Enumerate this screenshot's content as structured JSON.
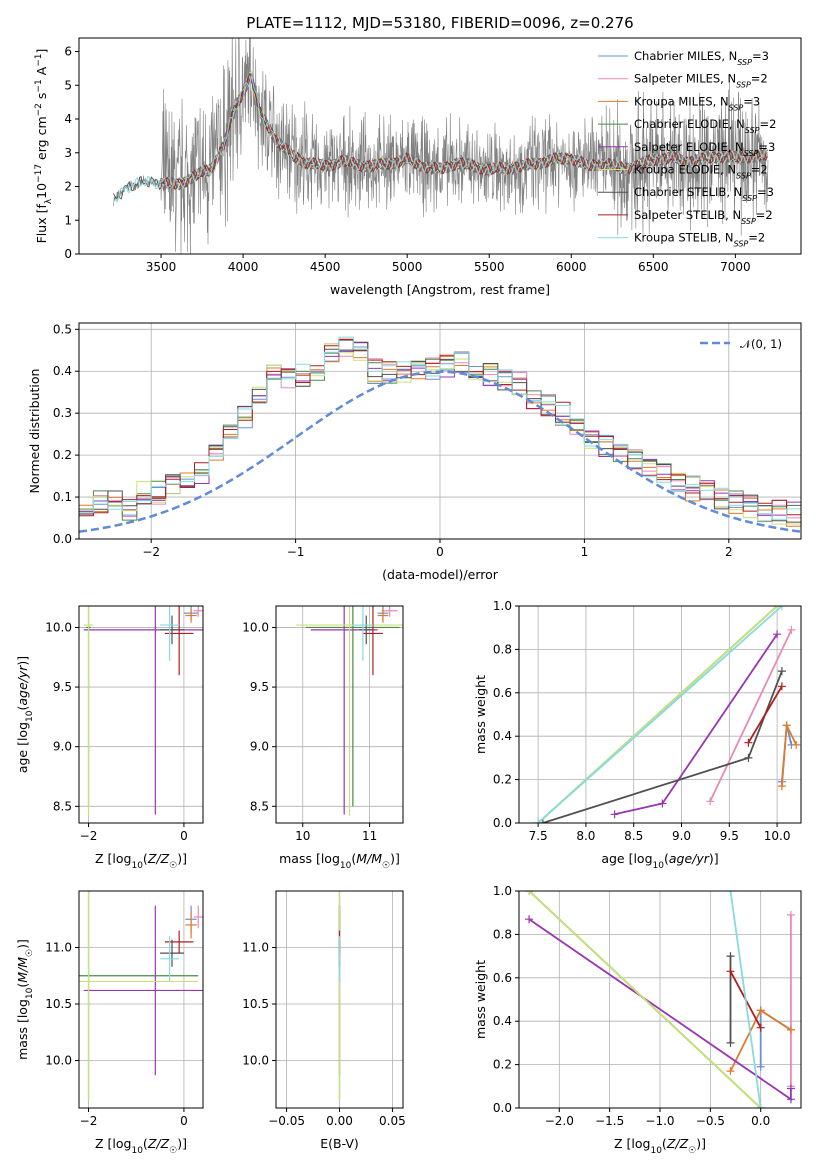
{
  "figure": {
    "title": "PLATE=1112, MJD=53180, FIBERID=0096, z=0.276"
  },
  "palette": {
    "Chabrier MILES": "#6a8fd8",
    "Salpeter MILES": "#e889b8",
    "Kroupa MILES": "#e07a2c",
    "Chabrier ELODIE": "#4a8a48",
    "Salpeter ELODIE": "#9a35b0",
    "Kroupa ELODIE": "#c8e27a",
    "Chabrier STELIB": "#505050",
    "Salpeter STELIB": "#b01e1e",
    "Kroupa STELIB": "#86dbe0",
    "data": "#808080",
    "gaussian": "#5f8bd8"
  },
  "chart_data": [
    {
      "id": "spectrum",
      "type": "line",
      "title": "PLATE=1112, MJD=53180, FIBERID=0096, z=0.276",
      "xlabel": "wavelength [Angstrom, rest frame]",
      "ylabel": "Flux [f_λ 10^-17 erg cm^-2 s^-1 A^-1]",
      "xlim": [
        3000,
        7400
      ],
      "ylim": [
        0,
        6.4
      ],
      "xticks": [
        3500,
        4000,
        4500,
        5000,
        5500,
        6000,
        6500,
        7000
      ],
      "yticks": [
        0,
        1,
        2,
        3,
        4,
        5,
        6
      ],
      "grid": false,
      "legend_position": "top-right",
      "data_range": [
        3210,
        7200
      ],
      "legend": [
        {
          "name": "Chabrier MILES, N",
          "sub": "SSP",
          "tail": "=3"
        },
        {
          "name": "Salpeter MILES, N",
          "sub": "SSP",
          "tail": "=2"
        },
        {
          "name": "Kroupa MILES, N",
          "sub": "SSP",
          "tail": "=3"
        },
        {
          "name": "Chabrier ELODIE, N",
          "sub": "SSP",
          "tail": "=2"
        },
        {
          "name": "Salpeter ELODIE, N",
          "sub": "SSP",
          "tail": "=3"
        },
        {
          "name": "Kroupa ELODIE, N",
          "sub": "SSP",
          "tail": "=2"
        },
        {
          "name": "Chabrier STELIB, N",
          "sub": "SSP",
          "tail": "=3"
        },
        {
          "name": "Salpeter STELIB, N",
          "sub": "SSP",
          "tail": "=2"
        },
        {
          "name": "Kroupa STELIB, N",
          "sub": "SSP",
          "tail": "=2"
        }
      ],
      "series_continuum": [
        [
          3210,
          1.6
        ],
        [
          3300,
          2.0
        ],
        [
          3400,
          2.15
        ],
        [
          3500,
          2.1
        ],
        [
          3600,
          2.05
        ],
        [
          3700,
          2.3
        ],
        [
          3800,
          2.5
        ],
        [
          3880,
          3.2
        ],
        [
          3950,
          4.3
        ],
        [
          4000,
          4.8
        ],
        [
          4050,
          5.3
        ],
        [
          4100,
          4.2
        ],
        [
          4200,
          3.4
        ],
        [
          4300,
          2.9
        ],
        [
          4400,
          2.7
        ],
        [
          4500,
          2.6
        ],
        [
          4600,
          2.75
        ],
        [
          4700,
          2.65
        ],
        [
          4800,
          2.6
        ],
        [
          4900,
          2.7
        ],
        [
          5000,
          2.8
        ],
        [
          5100,
          2.6
        ],
        [
          5200,
          2.5
        ],
        [
          5300,
          2.7
        ],
        [
          5400,
          2.6
        ],
        [
          5500,
          2.5
        ],
        [
          5600,
          2.55
        ],
        [
          5700,
          2.6
        ],
        [
          5800,
          2.7
        ],
        [
          5900,
          2.8
        ],
        [
          6000,
          2.85
        ],
        [
          6100,
          2.6
        ],
        [
          6200,
          2.7
        ],
        [
          6300,
          2.55
        ],
        [
          6400,
          2.6
        ],
        [
          6500,
          2.8
        ],
        [
          6600,
          2.85
        ],
        [
          6700,
          2.75
        ],
        [
          6800,
          2.8
        ],
        [
          6900,
          2.9
        ],
        [
          7000,
          2.85
        ],
        [
          7100,
          2.9
        ],
        [
          7200,
          2.9
        ]
      ]
    },
    {
      "id": "residuals",
      "type": "bar",
      "xlabel": "(data-model)/error",
      "ylabel": "Normed distribution",
      "xlim": [
        -2.5,
        2.5
      ],
      "ylim": [
        0,
        0.515
      ],
      "xticks": [
        -2,
        -1,
        0,
        1,
        2
      ],
      "yticks": [
        0.0,
        0.1,
        0.2,
        0.3,
        0.4,
        0.5
      ],
      "grid": true,
      "legend_position": "top-right",
      "legend": [
        {
          "name": "𝒩(0, 1)"
        }
      ],
      "bin_width": 0.1,
      "base_hist": [
        0.02,
        0.02,
        0.02,
        0.03,
        0.04,
        0.05,
        0.065,
        0.085,
        0.09,
        0.07,
        0.11,
        0.11,
        0.13,
        0.15,
        0.16,
        0.2,
        0.25,
        0.29,
        0.35,
        0.4,
        0.38,
        0.39,
        0.4,
        0.44,
        0.46,
        0.44,
        0.4,
        0.4,
        0.4,
        0.4,
        0.41,
        0.41,
        0.42,
        0.41,
        0.39,
        0.38,
        0.37,
        0.34,
        0.32,
        0.3,
        0.27,
        0.23,
        0.22,
        0.21,
        0.19,
        0.17,
        0.15,
        0.14,
        0.12,
        0.11,
        0.1,
        0.09,
        0.08,
        0.07,
        0.065,
        0.06,
        0.05,
        0.05,
        0.04,
        0.03,
        0.02,
        0.02
      ]
    },
    {
      "id": "age-vs-Z",
      "type": "scatter",
      "xlabel": "Z [log10(Z/Z☉)]",
      "ylabel": "age [log10(age/yr)]",
      "xlim": [
        -2.2,
        0.4
      ],
      "ylim": [
        8.36,
        10.18
      ],
      "xticks": [
        -2,
        0
      ],
      "yticks": [
        8.5,
        9.0,
        9.5,
        10.0
      ],
      "grid": true,
      "points": [
        {
          "model": "Chabrier MILES",
          "x": 0.15,
          "y": 10.12,
          "xerr": 0.15,
          "yerr": 0.06
        },
        {
          "model": "Salpeter MILES",
          "x": 0.3,
          "y": 10.14,
          "xerr": 0.1,
          "yerr": 0.05
        },
        {
          "model": "Kroupa MILES",
          "x": 0.15,
          "y": 10.1,
          "xerr": 0.12,
          "yerr": 0.06
        },
        {
          "model": "Chabrier ELODIE",
          "x": -2.0,
          "y": 10.0,
          "xerr": 0.05,
          "yerr": 1.5
        },
        {
          "model": "Salpeter ELODIE",
          "x": -0.6,
          "y": 9.98,
          "xerr": 1.5,
          "yerr": 1.55
        },
        {
          "model": "Kroupa ELODIE",
          "x": -2.0,
          "y": 10.02,
          "xerr": 0.1,
          "yerr": 1.6
        },
        {
          "model": "Chabrier STELIB",
          "x": -0.25,
          "y": 9.98,
          "xerr": 0.25,
          "yerr": 0.12
        },
        {
          "model": "Salpeter STELIB",
          "x": -0.1,
          "y": 9.95,
          "xerr": 0.3,
          "yerr": 0.35
        },
        {
          "model": "Kroupa STELIB",
          "x": -0.3,
          "y": 10.02,
          "xerr": 0.2,
          "yerr": 0.3
        }
      ]
    },
    {
      "id": "age-vs-mass",
      "type": "scatter",
      "xlabel": "mass [log10(M/M☉)]",
      "ylabel": "",
      "xlim": [
        9.6,
        11.5
      ],
      "ylim": [
        8.36,
        10.18
      ],
      "xticks": [
        10,
        11
      ],
      "yticks": [
        8.5,
        9.0,
        9.5,
        10.0
      ],
      "grid": true,
      "points": [
        {
          "model": "Chabrier MILES",
          "x": 11.2,
          "y": 10.12,
          "xerr": 0.08,
          "yerr": 0.06
        },
        {
          "model": "Salpeter MILES",
          "x": 11.3,
          "y": 10.14,
          "xerr": 0.12,
          "yerr": 0.05
        },
        {
          "model": "Kroupa MILES",
          "x": 11.2,
          "y": 10.1,
          "xerr": 0.08,
          "yerr": 0.06
        },
        {
          "model": "Chabrier ELODIE",
          "x": 10.75,
          "y": 10.0,
          "xerr": 0.7,
          "yerr": 1.5
        },
        {
          "model": "Salpeter ELODIE",
          "x": 10.62,
          "y": 9.98,
          "xerr": 0.5,
          "yerr": 1.55
        },
        {
          "model": "Kroupa ELODIE",
          "x": 10.7,
          "y": 10.02,
          "xerr": 0.8,
          "yerr": 1.6
        },
        {
          "model": "Chabrier STELIB",
          "x": 10.95,
          "y": 9.98,
          "xerr": 0.1,
          "yerr": 0.12
        },
        {
          "model": "Salpeter STELIB",
          "x": 11.05,
          "y": 9.95,
          "xerr": 0.15,
          "yerr": 0.35
        },
        {
          "model": "Kroupa STELIB",
          "x": 10.9,
          "y": 10.02,
          "xerr": 0.15,
          "yerr": 0.3
        }
      ]
    },
    {
      "id": "weight-vs-age",
      "type": "line",
      "xlabel": "age [log10(age/yr)]",
      "ylabel": "mass weight",
      "xlim": [
        7.3,
        10.25
      ],
      "ylim": [
        0,
        1.0
      ],
      "xticks": [
        7.5,
        8.0,
        8.5,
        9.0,
        9.5,
        10.0
      ],
      "yticks": [
        0.0,
        0.2,
        0.4,
        0.6,
        0.8,
        1.0
      ],
      "grid": true,
      "series": [
        {
          "model": "Chabrier MILES",
          "points": [
            [
              10.05,
              0.19
            ],
            [
              10.1,
              0.45
            ],
            [
              10.15,
              0.36
            ]
          ]
        },
        {
          "model": "Salpeter MILES",
          "points": [
            [
              9.3,
              0.1
            ],
            [
              10.15,
              0.89
            ]
          ]
        },
        {
          "model": "Kroupa MILES",
          "points": [
            [
              10.05,
              0.17
            ],
            [
              10.1,
              0.45
            ],
            [
              10.2,
              0.36
            ]
          ]
        },
        {
          "model": "Chabrier ELODIE",
          "points": [
            [
              7.5,
              0.0
            ],
            [
              10.0,
              1.0
            ]
          ]
        },
        {
          "model": "Salpeter ELODIE",
          "points": [
            [
              8.3,
              0.04
            ],
            [
              8.8,
              0.09
            ],
            [
              10.0,
              0.87
            ]
          ]
        },
        {
          "model": "Kroupa ELODIE",
          "points": [
            [
              7.5,
              0.0
            ],
            [
              10.0,
              1.0
            ]
          ]
        },
        {
          "model": "Chabrier STELIB",
          "points": [
            [
              7.55,
              0.0
            ],
            [
              9.7,
              0.3
            ],
            [
              10.05,
              0.7
            ]
          ]
        },
        {
          "model": "Salpeter STELIB",
          "points": [
            [
              9.7,
              0.37
            ],
            [
              10.05,
              0.63
            ]
          ]
        },
        {
          "model": "Kroupa STELIB",
          "points": [
            [
              7.5,
              0.0
            ],
            [
              10.05,
              1.0
            ]
          ]
        }
      ]
    },
    {
      "id": "mass-vs-Z",
      "type": "scatter",
      "xlabel": "Z [log10(Z/Z☉)]",
      "ylabel": "mass [log10(M/M☉)]",
      "xlim": [
        -2.2,
        0.4
      ],
      "ylim": [
        9.58,
        11.5
      ],
      "xticks": [
        -2,
        0
      ],
      "yticks": [
        10.0,
        10.5,
        11.0
      ],
      "grid": true,
      "points": [
        {
          "model": "Chabrier MILES",
          "x": 0.15,
          "y": 11.25,
          "xerr": 0.12,
          "yerr": 0.12
        },
        {
          "model": "Salpeter MILES",
          "x": 0.3,
          "y": 11.27,
          "xerr": 0.1,
          "yerr": 0.1
        },
        {
          "model": "Kroupa MILES",
          "x": 0.15,
          "y": 11.2,
          "xerr": 0.12,
          "yerr": 0.12
        },
        {
          "model": "Chabrier ELODIE",
          "x": -2.0,
          "y": 10.75,
          "xerr": 2.3,
          "yerr": 1.1
        },
        {
          "model": "Salpeter ELODIE",
          "x": -0.6,
          "y": 10.62,
          "xerr": 1.5,
          "yerr": 0.75
        },
        {
          "model": "Kroupa ELODIE",
          "x": -2.0,
          "y": 10.7,
          "xerr": 2.3,
          "yerr": 1.05
        },
        {
          "model": "Chabrier STELIB",
          "x": -0.25,
          "y": 10.95,
          "xerr": 0.25,
          "yerr": 0.12
        },
        {
          "model": "Salpeter STELIB",
          "x": -0.1,
          "y": 11.05,
          "xerr": 0.3,
          "yerr": 0.1
        },
        {
          "model": "Kroupa STELIB",
          "x": -0.3,
          "y": 10.9,
          "xerr": 0.2,
          "yerr": 0.2
        }
      ]
    },
    {
      "id": "mass-vs-EBV",
      "type": "scatter",
      "xlabel": "E(B-V)",
      "ylabel": "",
      "xlim": [
        -0.06,
        0.06
      ],
      "ylim": [
        9.58,
        11.5
      ],
      "xticks": [
        -0.05,
        0.0,
        0.05
      ],
      "yticks": [
        10.0,
        10.5,
        11.0
      ],
      "grid": true,
      "points": [
        {
          "model": "Chabrier MILES",
          "x": 0.0,
          "y": 11.25,
          "xerr": 0,
          "yerr": 0.12
        },
        {
          "model": "Salpeter MILES",
          "x": 0.0,
          "y": 11.27,
          "xerr": 0,
          "yerr": 0.12
        },
        {
          "model": "Kroupa MILES",
          "x": 0.0,
          "y": 11.2,
          "xerr": 0,
          "yerr": 0.12
        },
        {
          "model": "Chabrier ELODIE",
          "x": 0.0,
          "y": 10.75,
          "xerr": 0,
          "yerr": 1.1
        },
        {
          "model": "Salpeter ELODIE",
          "x": 0.0,
          "y": 10.62,
          "xerr": 0,
          "yerr": 0.75
        },
        {
          "model": "Kroupa ELODIE",
          "x": 0.0,
          "y": 10.7,
          "xerr": 0,
          "yerr": 1.05
        },
        {
          "model": "Chabrier STELIB",
          "x": 0.0,
          "y": 10.95,
          "xerr": 0,
          "yerr": 0.12
        },
        {
          "model": "Salpeter STELIB",
          "x": 0.0,
          "y": 11.05,
          "xerr": 0,
          "yerr": 0.1
        },
        {
          "model": "Kroupa STELIB",
          "x": 0.0,
          "y": 10.9,
          "xerr": 0,
          "yerr": 0.2
        }
      ]
    },
    {
      "id": "weight-vs-Z",
      "type": "line",
      "xlabel": "Z [log10(Z/Z☉)]",
      "ylabel": "mass weight",
      "xlim": [
        -2.4,
        0.4
      ],
      "ylim": [
        0,
        1.0
      ],
      "xticks": [
        -2.0,
        -1.5,
        -1.0,
        -0.5,
        0.0
      ],
      "yticks": [
        0.0,
        0.2,
        0.4,
        0.6,
        0.8,
        1.0
      ],
      "grid": true,
      "series": [
        {
          "model": "Chabrier MILES",
          "points": [
            [
              0.0,
              0.19
            ],
            [
              0.0,
              0.45
            ],
            [
              0.3,
              0.36
            ]
          ]
        },
        {
          "model": "Salpeter MILES",
          "points": [
            [
              0.3,
              0.1
            ],
            [
              0.3,
              0.89
            ]
          ]
        },
        {
          "model": "Kroupa MILES",
          "points": [
            [
              -0.3,
              0.17
            ],
            [
              0.0,
              0.45
            ],
            [
              0.3,
              0.36
            ]
          ]
        },
        {
          "model": "Chabrier ELODIE",
          "points": [
            [
              -2.3,
              1.0
            ],
            [
              0.0,
              0.0
            ]
          ]
        },
        {
          "model": "Salpeter ELODIE",
          "points": [
            [
              -2.3,
              0.87
            ],
            [
              0.3,
              0.04
            ],
            [
              0.3,
              0.09
            ]
          ]
        },
        {
          "model": "Kroupa ELODIE",
          "points": [
            [
              -2.3,
              1.0
            ],
            [
              0.0,
              0.0
            ]
          ]
        },
        {
          "model": "Chabrier STELIB",
          "points": [
            [
              -0.3,
              0.3
            ],
            [
              -0.3,
              0.7
            ]
          ]
        },
        {
          "model": "Salpeter STELIB",
          "points": [
            [
              -0.3,
              0.63
            ],
            [
              0.0,
              0.37
            ]
          ]
        },
        {
          "model": "Kroupa STELIB",
          "points": [
            [
              -0.3,
              1.0
            ],
            [
              0.0,
              0.0
            ]
          ]
        }
      ]
    }
  ]
}
